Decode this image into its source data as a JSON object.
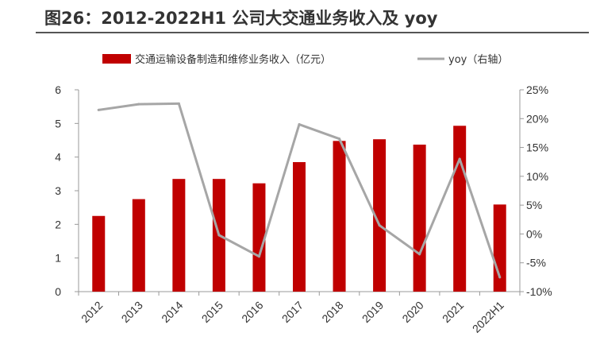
{
  "title": "图26：2012-2022H1 公司大交通业务收入及 yoy",
  "colors": {
    "bar": "#C00000",
    "line": "#A6A6A6",
    "axis": "#999999",
    "title_rule": "#555555"
  },
  "chart_data": {
    "type": "bar",
    "categories": [
      "2012",
      "2013",
      "2014",
      "2015",
      "2016",
      "2017",
      "2018",
      "2019",
      "2020",
      "2021",
      "2022H1"
    ],
    "series": [
      {
        "name": "交通运输设备制造和维修业务收入（亿元）",
        "type": "bar",
        "axis": "left",
        "values": [
          2.25,
          2.75,
          3.35,
          3.35,
          3.22,
          3.85,
          4.48,
          4.53,
          4.37,
          4.93,
          2.59
        ]
      },
      {
        "name": "yoy（右轴）",
        "type": "line",
        "axis": "right",
        "values": [
          21.5,
          22.5,
          null,
          -0.2,
          -3.9,
          19.0,
          16.5,
          1.5,
          -3.5,
          13.0,
          -7.5
        ]
      }
    ],
    "y_left": {
      "lim": [
        0,
        6
      ],
      "ticks": [
        "0",
        "1",
        "2",
        "3",
        "4",
        "5",
        "6"
      ]
    },
    "y_right": {
      "lim": [
        -10,
        25
      ],
      "ticks": [
        "-10%",
        "-5%",
        "0%",
        "5%",
        "10%",
        "15%",
        "20%",
        "25%"
      ]
    },
    "legend_position": "top",
    "grid": false
  }
}
